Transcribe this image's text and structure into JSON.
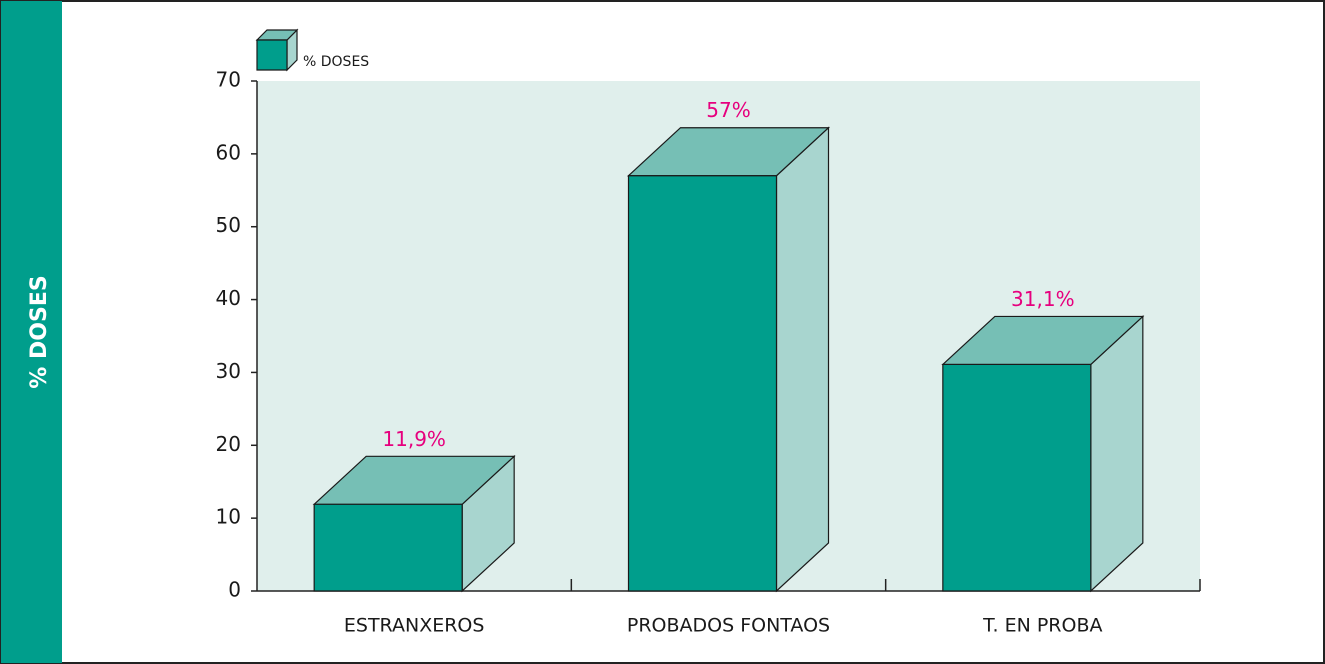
{
  "chart_data": {
    "type": "bar",
    "y_label": "% DOSES",
    "categories": [
      "ESTRANXEROS",
      "PROBADOS FONTAOS",
      "T. EN PROBA"
    ],
    "series": [
      {
        "name": "% DOSES",
        "color": "#009e8c",
        "values": [
          11.9,
          57,
          31.1
        ],
        "value_labels": [
          "11,9%",
          "57%",
          "31,1%"
        ]
      }
    ],
    "ylim": [
      0,
      70
    ],
    "yticks": [
      0,
      10,
      20,
      30,
      40,
      50,
      60,
      70
    ],
    "label_color": "#e6007e",
    "legend": "top-left"
  }
}
